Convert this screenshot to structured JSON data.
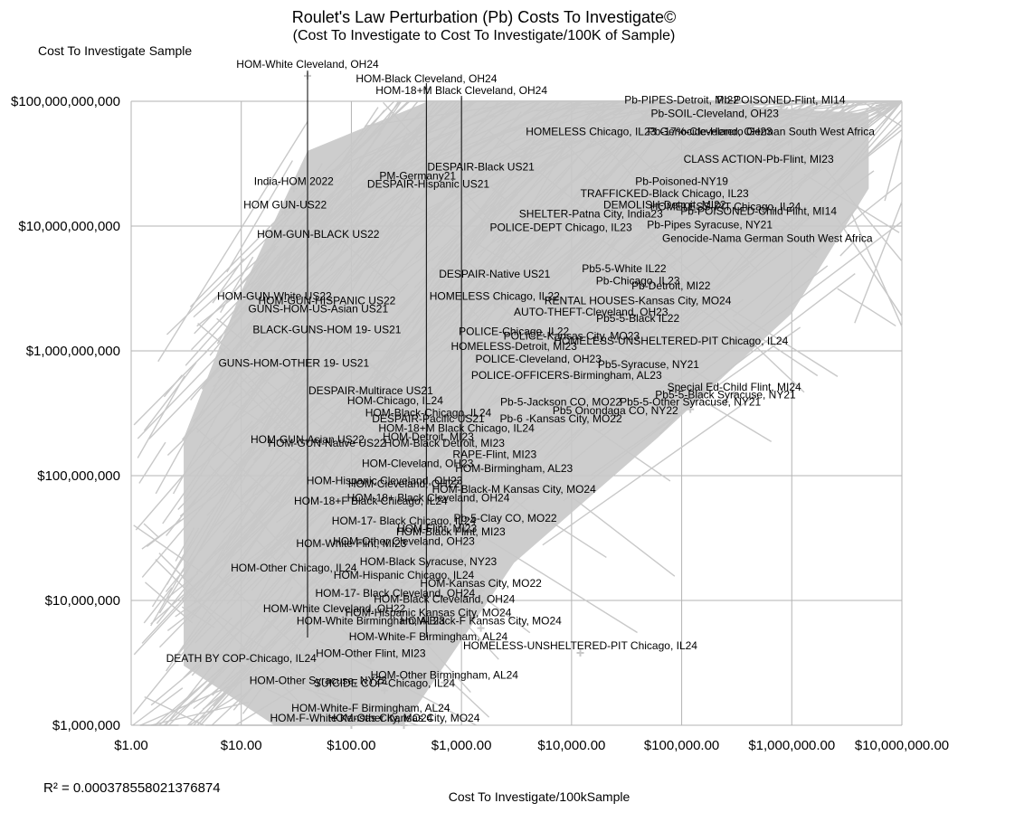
{
  "chart_data": {
    "type": "scatter",
    "title": "Roulet's Law Perturbation (Pb) Costs To Investigate©",
    "subtitle": "(Cost To Investigate to Cost To Investigate/100K of Sample)",
    "ylabel": "Cost To Investigate Sample",
    "xlabel": "Cost To Investigate/100kSample",
    "x_scale": "log",
    "y_scale": "log",
    "xlim": [
      1,
      10000000
    ],
    "ylim": [
      1000000,
      100000000000
    ],
    "x_ticks": [
      "$1.00",
      "$10.00",
      "$100.00",
      "$1,000.00",
      "$10,000.00",
      "$100,000.00",
      "$1,000,000.00",
      "$10,000,000.00"
    ],
    "y_ticks": [
      "$1,000,000",
      "$10,000,000",
      "$100,000,000",
      "$1,000,000,000",
      "$10,000,000,000",
      "$100,000,000,000"
    ],
    "grid": true,
    "legend": "none",
    "annotation": "R² = 0.000378558021376874",
    "point_color": "#c8c8c8",
    "points": [
      {
        "label": "HOM-White Cleveland, OH24",
        "x": 40,
        "y": 160000000000
      },
      {
        "label": "HOM-Black Cleveland, OH24",
        "x": 480,
        "y": 125000000000
      },
      {
        "label": "HOM-18+M Black Cleveland, OH24",
        "x": 1000,
        "y": 100000000000
      },
      {
        "label": "Pb-PIPES-Detroit, MI22",
        "x": 100000,
        "y": 90000000000
      },
      {
        "label": "Pb-POISONED-Flint, MI14",
        "x": 800000,
        "y": 90000000000
      },
      {
        "label": "Pb-SOIL-Cleveland, OH23",
        "x": 200000,
        "y": 70000000000
      },
      {
        "label": "HOMELESS Chicago, IL23",
        "x": 15000,
        "y": 50000000000
      },
      {
        "label": "Pb-17%-Cleveland, OH23",
        "x": 180000,
        "y": 50000000000
      },
      {
        "label": "Genocide-Herero German South West Africa",
        "x": 600000,
        "y": 50000000000
      },
      {
        "label": "CLASS ACTION-Pb-Flint, MI23",
        "x": 500000,
        "y": 30000000000
      },
      {
        "label": "DESPAIR-Black US21",
        "x": 1500,
        "y": 26000000000
      },
      {
        "label": "PM-Germany21",
        "x": 400,
        "y": 22000000000
      },
      {
        "label": "DESPAIR-Hispanic US21",
        "x": 500,
        "y": 19000000000
      },
      {
        "label": "India-HOM 2022",
        "x": 30,
        "y": 20000000000
      },
      {
        "label": "Pb-Poisoned-NY19",
        "x": 100000,
        "y": 20000000000
      },
      {
        "label": "TRAFFICKED-Black Chicago, IL23",
        "x": 70000,
        "y": 16000000000
      },
      {
        "label": "DEMOLISH-Detroit, MI22",
        "x": 70000,
        "y": 13000000000
      },
      {
        "label": "HOM GUN-US22",
        "x": 25,
        "y": 13000000000
      },
      {
        "label": "HOMELESS-PIT Chicago, IL24",
        "x": 250000,
        "y": 12500000000
      },
      {
        "label": "Pb-POISONED-Child Flint, MI14",
        "x": 500000,
        "y": 11500000000
      },
      {
        "label": "SHELTER-Patna City, India23",
        "x": 15000,
        "y": 11000000000
      },
      {
        "label": "Pb-Pipes Syracuse, NY21",
        "x": 180000,
        "y": 9000000000
      },
      {
        "label": "POLICE-DEPT Chicago, IL23",
        "x": 8000,
        "y": 8500000000
      },
      {
        "label": "HOM-GUN-BLACK US22",
        "x": 50,
        "y": 7500000000
      },
      {
        "label": "Genocide-Nama German South West Africa",
        "x": 600000,
        "y": 7000000000
      },
      {
        "label": "DESPAIR-Native US21",
        "x": 2000,
        "y": 3600000000
      },
      {
        "label": "Pb5-5-White IL22",
        "x": 30000,
        "y": 4000000000
      },
      {
        "label": "Pb-Chicago, IL23",
        "x": 40000,
        "y": 3200000000
      },
      {
        "label": "Pb-Detroit, MI22",
        "x": 80000,
        "y": 2900000000
      },
      {
        "label": "HOMELESS Chicago, IL22",
        "x": 2000,
        "y": 2400000000
      },
      {
        "label": "RENTAL HOUSES-Kansas City, MO24",
        "x": 40000,
        "y": 2200000000
      },
      {
        "label": "HOM-GUN-White US22",
        "x": 20,
        "y": 2400000000
      },
      {
        "label": "HOM-GUN-HISPANIC US22",
        "x": 60,
        "y": 2200000000
      },
      {
        "label": "GUNS-HOM-US-Asian US21",
        "x": 50,
        "y": 1900000000
      },
      {
        "label": "AUTO-THEFT-Cleveland, OH23",
        "x": 15000,
        "y": 1800000000
      },
      {
        "label": "Pb5-5-Black IL22",
        "x": 40000,
        "y": 1600000000
      },
      {
        "label": "BLACK-GUNS-HOM 19- US21",
        "x": 60,
        "y": 1300000000
      },
      {
        "label": "POLICE-Chicago, IL22",
        "x": 3000,
        "y": 1250000000
      },
      {
        "label": "POLICE-Kansas City, MO23",
        "x": 10000,
        "y": 1150000000
      },
      {
        "label": "HOMELESS-UNSHELTERED-PIT Chicago, IL24",
        "x": 80000,
        "y": 1050000000
      },
      {
        "label": "HOMELESS-Detroit, MI23",
        "x": 3000,
        "y": 950000000
      },
      {
        "label": "POLICE-Cleveland, OH23",
        "x": 5000,
        "y": 750000000
      },
      {
        "label": "GUNS-HOM-OTHER 19- US21",
        "x": 30,
        "y": 700000000
      },
      {
        "label": "Pb5-Syracuse, NY21",
        "x": 50000,
        "y": 680000000
      },
      {
        "label": "POLICE-OFFICERS-Birmingham, AL23",
        "x": 9000,
        "y": 560000000
      },
      {
        "label": "Special Ed-Child Flint, MI24",
        "x": 300000,
        "y": 450000000
      },
      {
        "label": "Pb5-5-Black Syracuse, NY21",
        "x": 250000,
        "y": 390000000
      },
      {
        "label": "DESPAIR-Multirace US21",
        "x": 150,
        "y": 420000000
      },
      {
        "label": "HOM-Chicago, IL24",
        "x": 250,
        "y": 350000000
      },
      {
        "label": "Pb-5-Jackson CO, MO22",
        "x": 8000,
        "y": 340000000
      },
      {
        "label": "Pb5-5-Other Syracuse, NY21",
        "x": 120000,
        "y": 340000000
      },
      {
        "label": "Pb5 Onondaga CO, NY22",
        "x": 25000,
        "y": 290000000
      },
      {
        "label": "HOM-Black-Chicago, IL24",
        "x": 500,
        "y": 280000000
      },
      {
        "label": "DESPAIR-Pacific US21",
        "x": 500,
        "y": 250000000
      },
      {
        "label": "Pb-6 -Kansas City, MO22",
        "x": 8000,
        "y": 250000000
      },
      {
        "label": "HOM-18+M Black Chicago, IL24",
        "x": 900,
        "y": 210000000
      },
      {
        "label": "HOM-Detroit, MI23",
        "x": 500,
        "y": 180000000
      },
      {
        "label": "HOM-Black Detroit, MI23",
        "x": 700,
        "y": 160000000
      },
      {
        "label": "HOM-GUN-Asian US22",
        "x": 40,
        "y": 170000000
      },
      {
        "label": "HOM-GUN-Native US22",
        "x": 60,
        "y": 160000000
      },
      {
        "label": "RAPE-Flint, MI23",
        "x": 2000,
        "y": 130000000
      },
      {
        "label": "HOM-Cleveland, OH23",
        "x": 400,
        "y": 110000000
      },
      {
        "label": "HOM-Birmingham, AL23",
        "x": 3000,
        "y": 100000000
      },
      {
        "label": "HOM-Hispanic Cleveland, OH23",
        "x": 200,
        "y": 80000000
      },
      {
        "label": "HOM-Cleveland, OH22",
        "x": 300,
        "y": 75000000
      },
      {
        "label": "HOM-Black-M Kansas City, MO24",
        "x": 3000,
        "y": 68000000
      },
      {
        "label": "HOM-18+F Black Chicago, IL24",
        "x": 150,
        "y": 55000000
      },
      {
        "label": "HOM-18+ Black Cleveland, OH24",
        "x": 500,
        "y": 58000000
      },
      {
        "label": "HOM-17- Black Chicago, IL24",
        "x": 300,
        "y": 38000000
      },
      {
        "label": "Pb-5-Clay CO, MO22",
        "x": 2500,
        "y": 40000000
      },
      {
        "label": "HOM-Flint, MI23",
        "x": 600,
        "y": 33000000
      },
      {
        "label": "HOM-Black Flint, MI23",
        "x": 800,
        "y": 31000000
      },
      {
        "label": "HOM-White Flint, MI23",
        "x": 100,
        "y": 25000000
      },
      {
        "label": "HOM-Other Cleveland, OH23",
        "x": 300,
        "y": 26000000
      },
      {
        "label": "HOM-Black Syracuse, NY23",
        "x": 500,
        "y": 18000000
      },
      {
        "label": "HOM-Other Chicago, IL24",
        "x": 30,
        "y": 16000000
      },
      {
        "label": "HOM-Hispanic Chicago, IL24",
        "x": 300,
        "y": 14000000
      },
      {
        "label": "HOM-Kansas City, MO22",
        "x": 1500,
        "y": 12000000
      },
      {
        "label": "HOM-17- Black Cleveland, OH24",
        "x": 250,
        "y": 10000000
      },
      {
        "label": "HOM-Black Cleveland, OH24",
        "x": 700,
        "y": 9000000
      },
      {
        "label": "HOM-White Cleveland, OH22",
        "x": 70,
        "y": 7500000
      },
      {
        "label": "HOM-Hispanic Kansas City, MO24",
        "x": 500,
        "y": 7000000
      },
      {
        "label": "HOM-White Birmingham, AL23",
        "x": 150,
        "y": 6000000
      },
      {
        "label": "HOM-Black-F Kansas City, MO24",
        "x": 1500,
        "y": 6000000
      },
      {
        "label": "HOM-White-F Birmingham, AL24",
        "x": 500,
        "y": 4500000
      },
      {
        "label": "HOMELESS-UNSHELTERED-PIT Chicago, IL24",
        "x": 12000,
        "y": 3800000
      },
      {
        "label": "HOM-Other Flint, MI23",
        "x": 150,
        "y": 3300000
      },
      {
        "label": "DEATH BY COP-Chicago, IL24",
        "x": 10,
        "y": 3000000
      },
      {
        "label": "HOM-Other Birmingham, AL24",
        "x": 700,
        "y": 2200000
      },
      {
        "label": "HOM-Other Syracuse, NY23",
        "x": 50,
        "y": 2000000
      },
      {
        "label": "SUICIDE COP-Chicago, IL24",
        "x": 200,
        "y": 1900000
      },
      {
        "label": "HOM-White-F Birmingham, AL24",
        "x": 150,
        "y": 1200000
      },
      {
        "label": "HOM-F-White Kansas City, MO24",
        "x": 100,
        "y": 1000000
      },
      {
        "label": "HOM-Other Kansas City, MO24",
        "x": 300,
        "y": 1000000
      }
    ]
  }
}
